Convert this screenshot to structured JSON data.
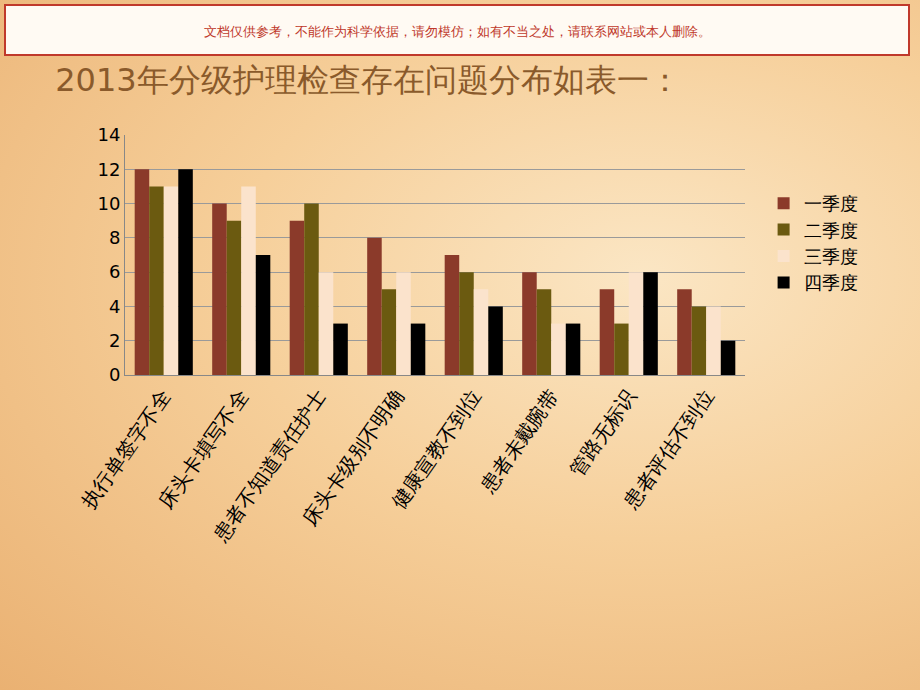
{
  "banner": "文档仅供参考，不能作为科学依据，请勿模仿；如有不当之处，请联系网站或本人删除。",
  "chart_data": {
    "type": "bar",
    "title": "2013年分级护理检查存在问题分布如表一：",
    "categories": [
      "执行单签字不全",
      "床头卡填写不全",
      "患者不知道责任护士",
      "床头卡级别不明确",
      "健康宣教不到位",
      "患者未戴腕带",
      "管路无标识",
      "患者评估不到位"
    ],
    "series": [
      {
        "name": "一季度",
        "color": "#8b3a2a",
        "values": [
          12,
          10,
          9,
          8,
          7,
          6,
          5,
          5
        ]
      },
      {
        "name": "二季度",
        "color": "#6b5a10",
        "values": [
          11,
          9,
          10,
          5,
          6,
          5,
          3,
          4
        ]
      },
      {
        "name": "三季度",
        "color": "#fbe3cc",
        "values": [
          11,
          11,
          6,
          6,
          5,
          3,
          6,
          4
        ]
      },
      {
        "name": "四季度",
        "color": "#000000",
        "values": [
          12,
          7,
          3,
          3,
          4,
          3,
          6,
          2
        ]
      }
    ],
    "ylim": [
      0,
      14
    ],
    "yticks": [
      0,
      2,
      4,
      6,
      8,
      10,
      12,
      14
    ],
    "grid": true,
    "legend": "right"
  }
}
